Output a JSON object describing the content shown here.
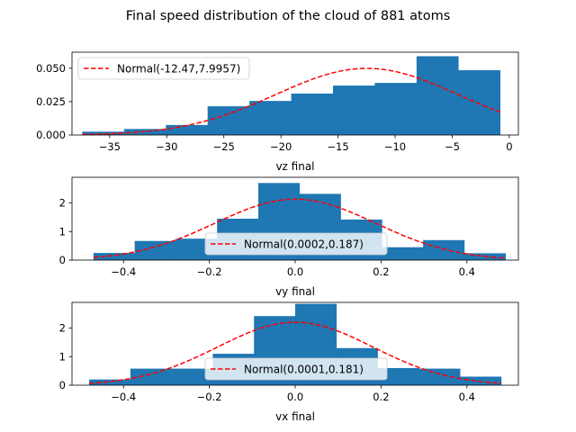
{
  "figure_title": "Final speed distribution of the cloud of 881 atoms",
  "colors": {
    "bar": "#1f77b4",
    "fit": "#ff0000"
  },
  "chart_data": [
    {
      "type": "bar",
      "xlabel": "vz final",
      "xlim": [
        -38.3,
        0.8
      ],
      "ylim": [
        0,
        0.062
      ],
      "xticks": [
        -35,
        -30,
        -25,
        -20,
        -15,
        -10,
        -5,
        0
      ],
      "yticks": [
        0.0,
        0.025,
        0.05
      ],
      "ytick_labels": [
        "0.000",
        "0.025",
        "0.050"
      ],
      "bin_edges": [
        -37.4,
        -33.74,
        -30.08,
        -26.42,
        -22.76,
        -19.1,
        -15.44,
        -11.78,
        -8.12,
        -4.46,
        -0.8
      ],
      "values": [
        0.0025,
        0.0045,
        0.0075,
        0.0215,
        0.0255,
        0.031,
        0.037,
        0.039,
        0.059,
        0.0485
      ],
      "fit": {
        "label": "Normal(-12.47,7.9957)",
        "mean": -12.47,
        "std": 7.9957
      },
      "legend_position": "upper left"
    },
    {
      "type": "bar",
      "xlabel": "vy final",
      "xlim": [
        -0.52,
        0.52
      ],
      "ylim": [
        0,
        2.9
      ],
      "xticks": [
        -0.4,
        -0.2,
        0.0,
        0.2,
        0.4
      ],
      "xtick_labels": [
        "−0.4",
        "−0.2",
        "0.0",
        "0.2",
        "0.4"
      ],
      "yticks": [
        0,
        1,
        2
      ],
      "bin_edges": [
        -0.47,
        -0.374,
        -0.278,
        -0.182,
        -0.086,
        0.01,
        0.106,
        0.202,
        0.298,
        0.394,
        0.49
      ],
      "values": [
        0.25,
        0.67,
        0.75,
        1.45,
        2.7,
        2.32,
        1.42,
        0.45,
        0.7,
        0.24
      ],
      "fit": {
        "label": "Normal(0.0002,0.187)",
        "mean": 0.0002,
        "std": 0.187
      },
      "legend_position": "lower center"
    },
    {
      "type": "bar",
      "xlabel": "vx final",
      "xlim": [
        -0.52,
        0.52
      ],
      "ylim": [
        0,
        2.9
      ],
      "xticks": [
        -0.4,
        -0.2,
        0.0,
        0.2,
        0.4
      ],
      "xtick_labels": [
        "−0.4",
        "−0.2",
        "0.0",
        "0.2",
        "0.4"
      ],
      "yticks": [
        0,
        1,
        2
      ],
      "bin_edges": [
        -0.48,
        -0.384,
        -0.288,
        -0.192,
        -0.096,
        0.0,
        0.096,
        0.192,
        0.288,
        0.384,
        0.48
      ],
      "values": [
        0.2,
        0.58,
        0.58,
        1.1,
        2.42,
        2.85,
        1.3,
        0.6,
        0.58,
        0.3
      ],
      "fit": {
        "label": "Normal(0.0001,0.181)",
        "mean": 0.0001,
        "std": 0.181
      },
      "legend_position": "lower center"
    }
  ]
}
